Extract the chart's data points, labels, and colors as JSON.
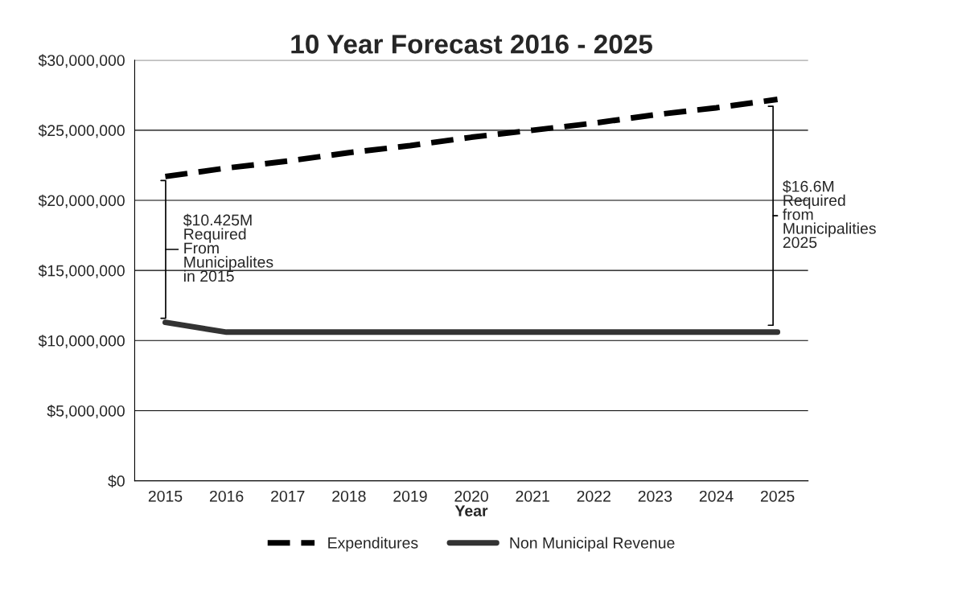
{
  "chart_data": {
    "type": "line",
    "title": "10 Year Forecast 2016 - 2025",
    "xlabel": "Year",
    "categories": [
      "2015",
      "2016",
      "2017",
      "2018",
      "2019",
      "2020",
      "2021",
      "2022",
      "2023",
      "2024",
      "2025"
    ],
    "series": [
      {
        "name": "Expenditures",
        "color": "#000000",
        "line_style": "dashed",
        "values": [
          21700000,
          22300000,
          22800000,
          23400000,
          23900000,
          24500000,
          25000000,
          25500000,
          26100000,
          26600000,
          27200000
        ]
      },
      {
        "name": "Non Municipal Revenue",
        "color": "#333333",
        "line_style": "solid",
        "values": [
          11300000,
          10600000,
          10600000,
          10600000,
          10600000,
          10600000,
          10600000,
          10600000,
          10600000,
          10600000,
          10600000
        ]
      }
    ],
    "ylim": [
      0,
      30000000
    ],
    "yticks": [
      {
        "value": 0,
        "label": "$0"
      },
      {
        "value": 5000000,
        "label": "$5,000,000"
      },
      {
        "value": 10000000,
        "label": "$10,000,000"
      },
      {
        "value": 15000000,
        "label": "$15,000,000"
      },
      {
        "value": 20000000,
        "label": "$20,000,000"
      },
      {
        "value": 25000000,
        "label": "$25,000,000"
      },
      {
        "value": 30000000,
        "label": "$30,000,000"
      }
    ],
    "annotations": [
      "$10.425M\nRequired\nFrom\nMunicipalites\nin 2015",
      "$16.6M\nRequired\nfrom\nMunicipalities\n2025"
    ],
    "grid": "y",
    "legend": "bottom",
    "marker": "none"
  }
}
